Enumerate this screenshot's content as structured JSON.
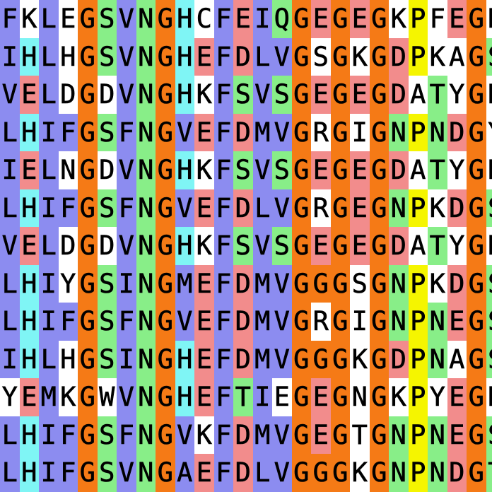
{
  "alignment": {
    "sequences": [
      "FKLEGSVNGHCFEIQGEGEGKPFEGK",
      "IHLHGSVNGHEFDLVGSGKGDPKAGS",
      "VELDGDVNGHKFSVSGEGEGDATYGK",
      "LHIFGSFNGVEFDMVGRGIGNPNDGY",
      "IELNGDVNGHKFSVSGEGEGDATYGK",
      "LHIFGSFNGVEFDLVGRGEGNPKDGS",
      "VELDGDVNGHKFSVSGEGEGDATYGK",
      "LHIYGSINGMEFDMVGGGSGNPKDGS",
      "LHIFGSFNGVEFDMVGRGIGNPNEGS",
      "IHLHGSINGHEFDMVGGGKGDPNAGS",
      "YEMKGWVNGHEFTIEGEGNGKPYEGK",
      "LHIFGSFNGVKFDMVGEGTGNPNEGS",
      "LHIFGSVNGAEFDLVGGGKGNPNDGT"
    ],
    "colors": {
      "hydrophobic": "#8c8cf0",
      "glycine": "#f57a16",
      "polar": "#33cc33",
      "small_polar": "#88ee88",
      "histidine": "#7ff5f5",
      "acidic": "#f28c8c",
      "proline": "#f5f500",
      "none": "#ffffff"
    },
    "residue_classes": {
      "A": "hydrophobic",
      "C": "hydrophobic",
      "I": "hydrophobic",
      "L": "hydrophobic",
      "M": "hydrophobic",
      "F": "hydrophobic",
      "W": "hydrophobic",
      "V": "hydrophobic",
      "G": "glycine",
      "P": "proline",
      "S": "small_polar",
      "T": "small_polar",
      "N": "small_polar",
      "Q": "small_polar",
      "H": "histidine",
      "Y": "histidine",
      "D": "acidic",
      "E": "acidic",
      "K": "none",
      "R": "none"
    },
    "column_threshold": 0.5
  }
}
